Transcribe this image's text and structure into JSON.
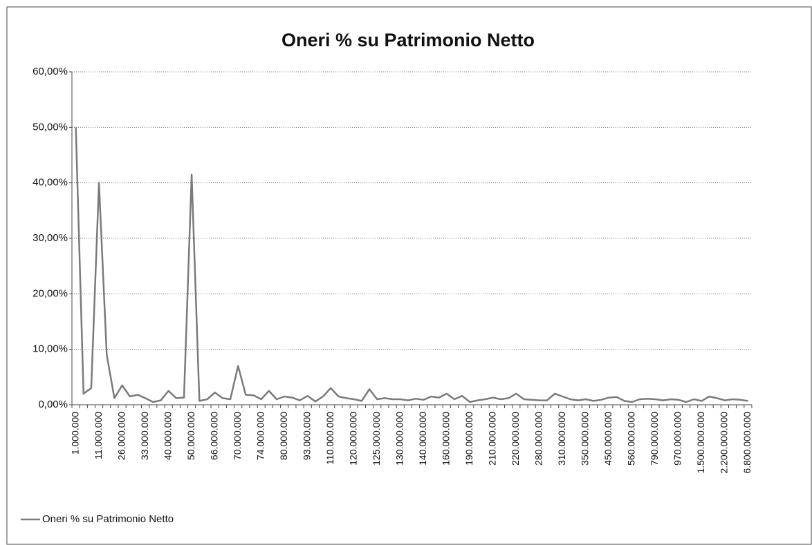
{
  "chart_data": {
    "type": "line",
    "title": "Oneri % su Patrimonio Netto",
    "categories": [
      "1.000.000",
      null,
      null,
      "11.000.000",
      null,
      null,
      "26.000.000",
      null,
      null,
      "33.000.000",
      null,
      null,
      "40.000.000",
      null,
      null,
      "50.000.000",
      null,
      null,
      "66.000.000",
      null,
      null,
      "70.000.000",
      null,
      null,
      "74.000.000",
      null,
      null,
      "80.000.000",
      null,
      null,
      "93.000.000",
      null,
      null,
      "110.000.000",
      null,
      null,
      "120.000.000",
      null,
      null,
      "125.000.000",
      null,
      null,
      "130.000.000",
      null,
      null,
      "140.000.000",
      null,
      null,
      "160.000.000",
      null,
      null,
      "190.000.000",
      null,
      null,
      "210.000.000",
      null,
      null,
      "220.000.000",
      null,
      null,
      "280.000.000",
      null,
      null,
      "310.000.000",
      null,
      null,
      "350.000.000",
      null,
      null,
      "450.000.000",
      null,
      null,
      "560.000.000",
      null,
      null,
      "790.000.000",
      null,
      null,
      "970.000.000",
      null,
      null,
      "1.500.000.000",
      null,
      null,
      "2.200.000.000",
      null,
      null,
      "6.800.000.000"
    ],
    "series": [
      {
        "name": "Oneri % su Patrimonio Netto",
        "color": "#7a7a7a",
        "values": [
          50,
          2,
          3,
          40,
          9,
          1.2,
          3.5,
          1.5,
          1.8,
          1.2,
          0.5,
          0.8,
          2.5,
          1.2,
          1.3,
          41.5,
          0.7,
          1,
          2.2,
          1.2,
          1,
          7,
          1.8,
          1.7,
          1,
          2.5,
          1,
          1.5,
          1.3,
          0.8,
          1.6,
          0.6,
          1.5,
          3,
          1.5,
          1.2,
          1,
          0.7,
          2.8,
          1,
          1.2,
          1,
          1,
          0.8,
          1.1,
          0.9,
          1.5,
          1.3,
          2,
          1,
          1.6,
          0.5,
          0.8,
          1,
          1.3,
          1,
          1.2,
          2,
          1,
          0.9,
          0.8,
          0.8,
          2,
          1.5,
          1,
          0.8,
          1,
          0.7,
          0.9,
          1.3,
          1.4,
          0.7,
          0.5,
          1,
          1.1,
          1,
          0.8,
          1,
          0.9,
          0.5,
          1,
          0.7,
          1.5,
          1.2,
          0.8,
          1,
          0.9,
          0.7
        ]
      }
    ],
    "ylim": [
      0,
      60
    ],
    "yticks": [
      {
        "value": 0,
        "label": "0,00%"
      },
      {
        "value": 10,
        "label": "10,00%"
      },
      {
        "value": 20,
        "label": "20,00%"
      },
      {
        "value": 30,
        "label": "30,00%"
      },
      {
        "value": 40,
        "label": "40,00%"
      },
      {
        "value": 50,
        "label": "50,00%"
      },
      {
        "value": 60,
        "label": "60,00%"
      }
    ],
    "grid": true,
    "legend": "bottom-left"
  }
}
